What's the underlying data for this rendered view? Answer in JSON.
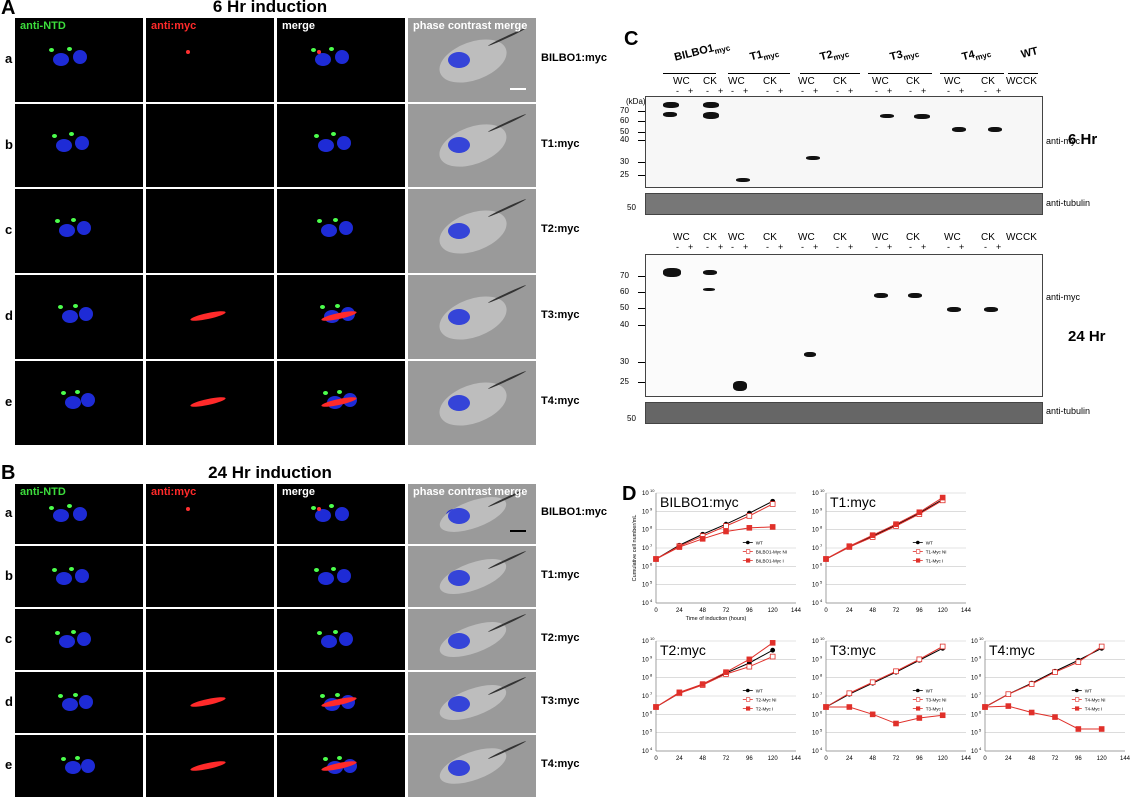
{
  "panel_letters": {
    "A": "A",
    "B": "B",
    "C": "C",
    "D": "D"
  },
  "panelA": {
    "title": "6 Hr induction",
    "channels": [
      "anti-NTD",
      "anti:myc",
      "merge",
      "phase contrast merge"
    ],
    "rows": [
      {
        "letter": "a",
        "name": "BILBO1:myc"
      },
      {
        "letter": "b",
        "name": "T1:myc"
      },
      {
        "letter": "c",
        "name": "T2:myc"
      },
      {
        "letter": "d",
        "name": "T3:myc"
      },
      {
        "letter": "e",
        "name": "T4:myc"
      }
    ]
  },
  "panelB": {
    "title": "24 Hr induction",
    "channels": [
      "anti-NTD",
      "anti:myc",
      "merge",
      "phase contrast merge"
    ],
    "rows": [
      {
        "letter": "a",
        "name": "BILBO1:myc"
      },
      {
        "letter": "b",
        "name": "T1:myc"
      },
      {
        "letter": "c",
        "name": "T2:myc"
      },
      {
        "letter": "d",
        "name": "T3:myc"
      },
      {
        "letter": "e",
        "name": "T4:myc"
      }
    ]
  },
  "panelC": {
    "constructs": [
      "BILBO1",
      "T1",
      "T2",
      "T3",
      "T4"
    ],
    "construct_sub": "myc",
    "wt": "WT",
    "fractions": {
      "wc": "WC",
      "ck": "CK"
    },
    "signs": {
      "minus": "-",
      "plus": "+"
    },
    "kda": "(kDa)",
    "mw_6hr": [
      "70",
      "60",
      "50",
      "40",
      "30",
      "25"
    ],
    "mw_tub": "50",
    "mw_24hr": [
      "70",
      "60",
      "50",
      "40",
      "30",
      "25"
    ],
    "antibody_myc": "anti-myc",
    "antibody_tub": "anti-tubulin",
    "time_6": "6 Hr",
    "time_24": "24 Hr"
  },
  "chart_data": [
    {
      "type": "line",
      "title": "BILBO1:myc",
      "xlabel": "Time of induction (hours)",
      "ylabel": "Cumulative cell number/mL",
      "x": [
        0,
        24,
        48,
        72,
        96,
        120
      ],
      "ylim": [
        4,
        10
      ],
      "yscale": "log",
      "yticks": [
        "10",
        "10",
        "10",
        "10",
        "10",
        "10",
        "10"
      ],
      "yexp": [
        "4",
        "5",
        "6",
        "7",
        "8",
        "9",
        "10"
      ],
      "xticks": [
        "0",
        "24",
        "48",
        "72",
        "96",
        "120",
        "144"
      ],
      "series": [
        {
          "name": "WT",
          "values": [
            6.4,
            7.15,
            7.75,
            8.3,
            8.9,
            9.55
          ]
        },
        {
          "name": "BILBO1-Myc NI",
          "values": [
            6.4,
            7.1,
            7.65,
            8.2,
            8.75,
            9.4
          ]
        },
        {
          "name": "BILBO1-Myc I",
          "values": [
            6.4,
            7.05,
            7.5,
            7.9,
            8.1,
            8.15
          ]
        }
      ]
    },
    {
      "type": "line",
      "title": "T1:myc",
      "xlabel": "",
      "ylabel": "",
      "x": [
        0,
        24,
        48,
        72,
        96,
        120
      ],
      "ylim": [
        4,
        10
      ],
      "yscale": "log",
      "yticks": [
        "10",
        "10",
        "10",
        "10",
        "10",
        "10",
        "10"
      ],
      "yexp": [
        "4",
        "5",
        "6",
        "7",
        "8",
        "9",
        "10"
      ],
      "xticks": [
        "0",
        "24",
        "48",
        "72",
        "96",
        "120",
        "144"
      ],
      "series": [
        {
          "name": "WT",
          "values": [
            6.4,
            7.05,
            7.65,
            8.25,
            8.9,
            9.65
          ]
        },
        {
          "name": "T1-Myc NI",
          "values": [
            6.4,
            7.05,
            7.6,
            8.2,
            8.85,
            9.6
          ]
        },
        {
          "name": "T1-Myc I",
          "values": [
            6.4,
            7.1,
            7.7,
            8.3,
            8.95,
            9.75
          ]
        }
      ]
    },
    {
      "type": "line",
      "title": "T2:myc",
      "xlabel": "",
      "ylabel": "",
      "x": [
        0,
        24,
        48,
        72,
        96,
        120
      ],
      "ylim": [
        4,
        10
      ],
      "yscale": "log",
      "yticks": [
        "10",
        "10",
        "10",
        "10",
        "10",
        "10",
        "10"
      ],
      "yexp": [
        "4",
        "5",
        "6",
        "7",
        "8",
        "9",
        "10"
      ],
      "xticks": [
        "0",
        "24",
        "48",
        "72",
        "96",
        "120",
        "144"
      ],
      "series": [
        {
          "name": "WT",
          "values": [
            6.4,
            7.15,
            7.65,
            8.25,
            8.8,
            9.5
          ]
        },
        {
          "name": "T2-Myc NI",
          "values": [
            6.4,
            7.15,
            7.6,
            8.2,
            8.6,
            9.15
          ]
        },
        {
          "name": "T2-Myc I",
          "values": [
            6.4,
            7.2,
            7.65,
            8.3,
            9.0,
            9.9
          ]
        }
      ]
    },
    {
      "type": "line",
      "title": "T3:myc",
      "xlabel": "",
      "ylabel": "",
      "x": [
        0,
        24,
        48,
        72,
        96,
        120
      ],
      "ylim": [
        4,
        10
      ],
      "yscale": "log",
      "yticks": [
        "10",
        "10",
        "10",
        "10",
        "10",
        "10",
        "10"
      ],
      "yexp": [
        "4",
        "5",
        "6",
        "7",
        "8",
        "9",
        "10"
      ],
      "xticks": [
        "0",
        "24",
        "48",
        "72",
        "96",
        "120",
        "144"
      ],
      "series": [
        {
          "name": "WT",
          "values": [
            6.4,
            7.1,
            7.7,
            8.3,
            8.95,
            9.6
          ]
        },
        {
          "name": "T3-Myc NI",
          "values": [
            6.4,
            7.15,
            7.75,
            8.35,
            9.0,
            9.7
          ]
        },
        {
          "name": "T3-Myc I",
          "values": [
            6.4,
            6.4,
            6.0,
            5.5,
            5.8,
            5.95
          ]
        }
      ]
    },
    {
      "type": "line",
      "title": "T4:myc",
      "xlabel": "",
      "ylabel": "",
      "x": [
        0,
        24,
        48,
        72,
        96,
        120
      ],
      "ylim": [
        4,
        10
      ],
      "yscale": "log",
      "yticks": [
        "10",
        "10",
        "10",
        "10",
        "10",
        "10",
        "10"
      ],
      "yexp": [
        "4",
        "5",
        "6",
        "7",
        "8",
        "9",
        "10"
      ],
      "xticks": [
        "0",
        "24",
        "48",
        "72",
        "96",
        "120",
        "144"
      ],
      "series": [
        {
          "name": "WT",
          "values": [
            6.4,
            7.1,
            7.7,
            8.35,
            8.95,
            9.6
          ]
        },
        {
          "name": "T4-Myc NI",
          "values": [
            6.4,
            7.1,
            7.65,
            8.3,
            8.85,
            9.7
          ]
        },
        {
          "name": "T4-Myc I",
          "values": [
            6.4,
            6.45,
            6.1,
            5.85,
            5.2,
            5.2
          ]
        }
      ]
    }
  ]
}
